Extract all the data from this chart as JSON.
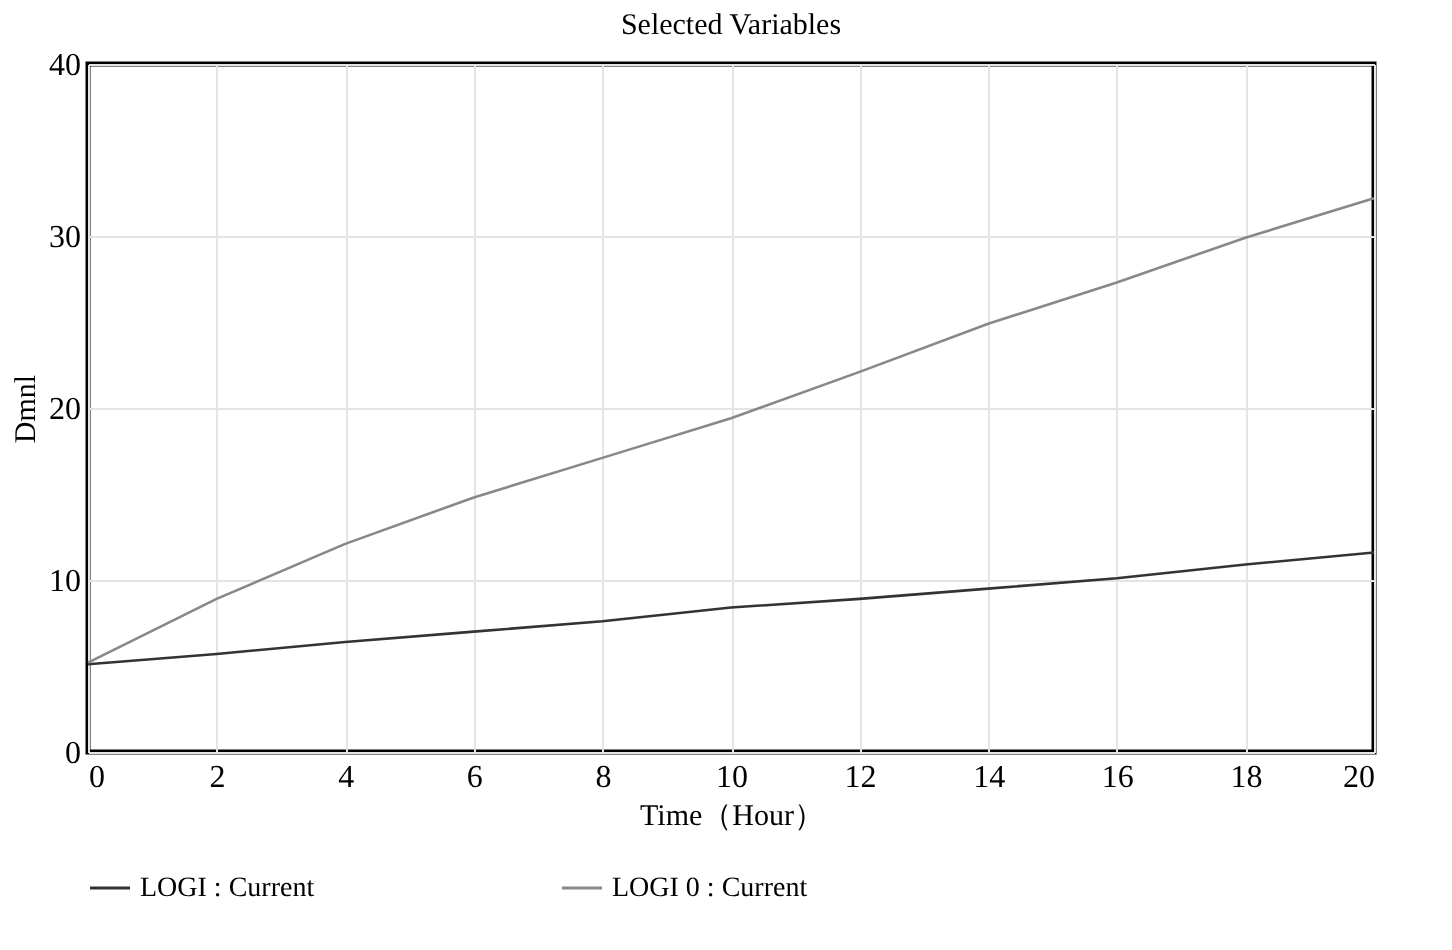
{
  "chart_data": {
    "type": "line",
    "title": "Selected Variables",
    "xlabel": "Time（Hour）",
    "ylabel": "Dmnl",
    "x": [
      0,
      2,
      4,
      6,
      8,
      10,
      12,
      14,
      16,
      18,
      20
    ],
    "series": [
      {
        "name": "LOGI : Current",
        "color": "#333333",
        "values": [
          5.1,
          5.7,
          6.4,
          7.0,
          7.6,
          8.4,
          8.9,
          9.5,
          10.1,
          10.9,
          11.6
        ]
      },
      {
        "name": "LOGI 0 : Current",
        "color": "#888888",
        "values": [
          5.2,
          8.9,
          12.1,
          14.8,
          17.1,
          19.4,
          22.1,
          24.9,
          27.3,
          29.9,
          32.2
        ]
      }
    ],
    "xlim": [
      0,
      20
    ],
    "xticks": [
      0,
      2,
      4,
      6,
      8,
      10,
      12,
      14,
      16,
      18,
      20
    ],
    "ylim": [
      0,
      40
    ],
    "yticks": [
      0,
      10,
      20,
      30,
      40
    ],
    "grid": true,
    "legend": "bottom",
    "line_style": "solid"
  }
}
